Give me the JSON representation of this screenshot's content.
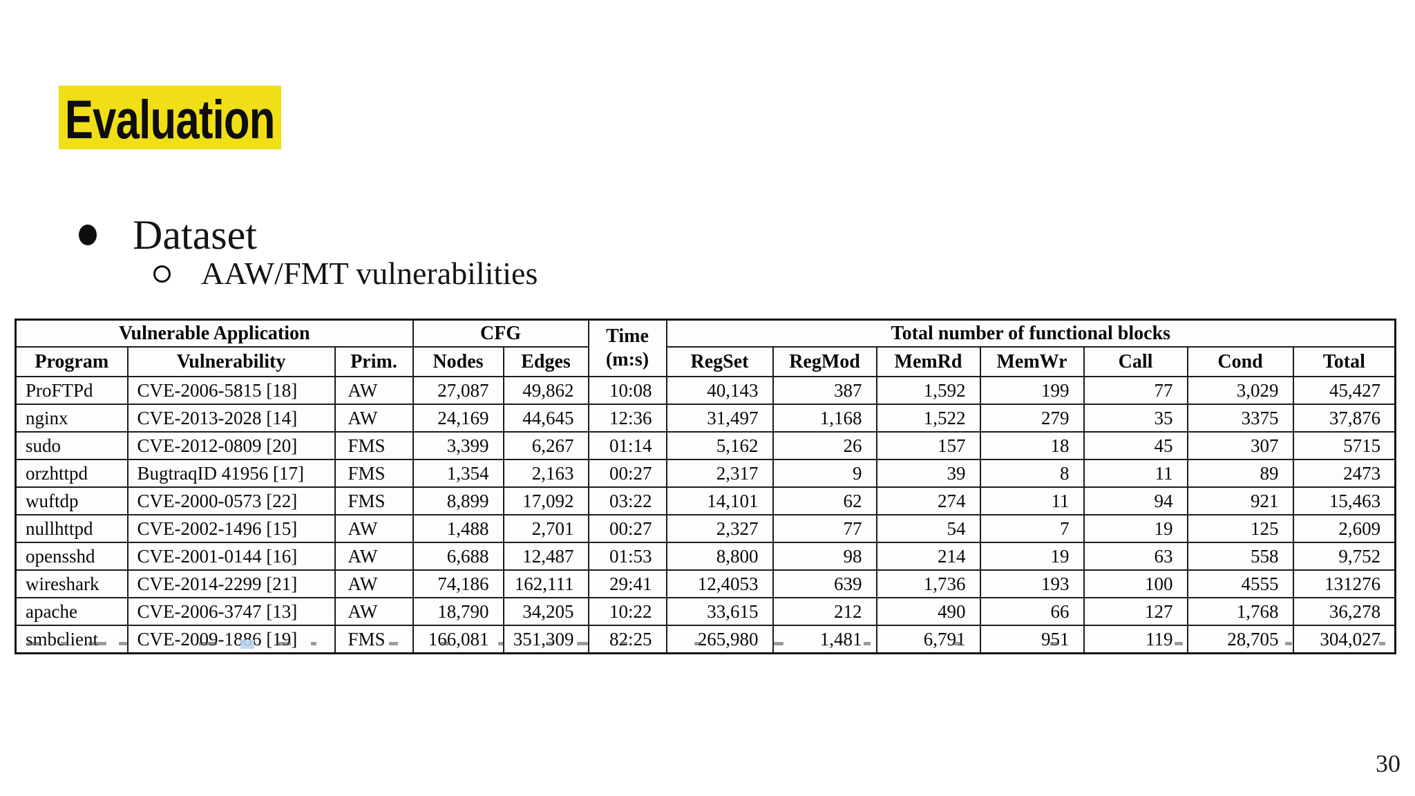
{
  "slide": {
    "title": "Evaluation",
    "title_highlight_color": "#f0df17",
    "bullets": [
      {
        "level": 1,
        "marker": "filled-circle",
        "text": "Dataset"
      },
      {
        "level": 2,
        "marker": "open-circle",
        "text": "AAW/FMT vulnerabilities"
      }
    ],
    "page_number": "30"
  },
  "table": {
    "group_headers": {
      "vulnerable_application": "Vulnerable Application",
      "cfg": "CFG",
      "time_line1": "Time",
      "time_line2": "(m:s)",
      "functional_blocks": "Total number of functional blocks"
    },
    "columns": [
      "Program",
      "Vulnerability",
      "Prim.",
      "Nodes",
      "Edges",
      "RegSet",
      "RegMod",
      "MemRd",
      "MemWr",
      "Call",
      "Cond",
      "Total"
    ],
    "rows": [
      [
        "ProFTPd",
        "CVE-2006-5815 [18]",
        "AW",
        "27,087",
        "49,862",
        "10:08",
        "40,143",
        "387",
        "1,592",
        "199",
        "77",
        "3,029",
        "45,427"
      ],
      [
        "nginx",
        "CVE-2013-2028 [14]",
        "AW",
        "24,169",
        "44,645",
        "12:36",
        "31,497",
        "1,168",
        "1,522",
        "279",
        "35",
        "3375",
        "37,876"
      ],
      [
        "sudo",
        "CVE-2012-0809 [20]",
        "FMS",
        "3,399",
        "6,267",
        "01:14",
        "5,162",
        "26",
        "157",
        "18",
        "45",
        "307",
        "5715"
      ],
      [
        "orzhttpd",
        "BugtraqID 41956 [17]",
        "FMS",
        "1,354",
        "2,163",
        "00:27",
        "2,317",
        "9",
        "39",
        "8",
        "11",
        "89",
        "2473"
      ],
      [
        "wuftdp",
        "CVE-2000-0573 [22]",
        "FMS",
        "8,899",
        "17,092",
        "03:22",
        "14,101",
        "62",
        "274",
        "11",
        "94",
        "921",
        "15,463"
      ],
      [
        "nullhttpd",
        "CVE-2002-1496 [15]",
        "AW",
        "1,488",
        "2,701",
        "00:27",
        "2,327",
        "77",
        "54",
        "7",
        "19",
        "125",
        "2,609"
      ],
      [
        "opensshd",
        "CVE-2001-0144 [16]",
        "AW",
        "6,688",
        "12,487",
        "01:53",
        "8,800",
        "98",
        "214",
        "19",
        "63",
        "558",
        "9,752"
      ],
      [
        "wireshark",
        "CVE-2014-2299 [21]",
        "AW",
        "74,186",
        "162,111",
        "29:41",
        "12,4053",
        "639",
        "1,736",
        "193",
        "100",
        "4555",
        "131276"
      ],
      [
        "apache",
        "CVE-2006-3747 [13]",
        "AW",
        "18,790",
        "34,205",
        "10:22",
        "33,615",
        "212",
        "490",
        "66",
        "127",
        "1,768",
        "36,278"
      ],
      [
        "smbclient",
        "CVE-2009-1886 [19]",
        "FMS",
        "166,081",
        "351,309",
        "82:25",
        "265,980",
        "1,481",
        "6,791",
        "951",
        "119",
        "28,705",
        "304,027"
      ]
    ]
  }
}
